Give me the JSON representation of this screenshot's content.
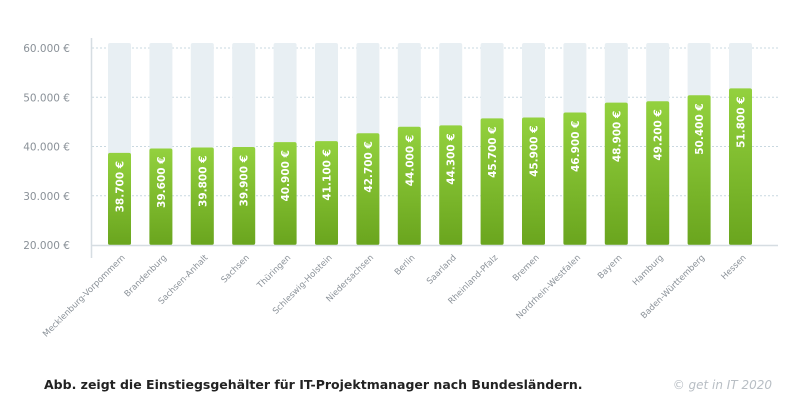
{
  "chart_data": {
    "type": "bar",
    "categories": [
      "Mecklenburg-Vorpommern",
      "Brandenburg",
      "Sachsen-Anhalt",
      "Sachsen",
      "Thüringen",
      "Schleswig-Holstein",
      "Niedersachsen",
      "Berlin",
      "Saarland",
      "Rheinland-Pfalz",
      "Bremen",
      "Nordrhein-Westfalen",
      "Bayern",
      "Hamburg",
      "Baden-Württemberg",
      "Hessen"
    ],
    "values": [
      38700,
      39600,
      39800,
      39900,
      40900,
      41100,
      42700,
      44000,
      44300,
      45700,
      45900,
      46900,
      48900,
      49200,
      50400,
      51800
    ],
    "value_labels": [
      "38.700 €",
      "39.600 €",
      "39.800 €",
      "39.900 €",
      "40.900 €",
      "41.100 €",
      "42.700 €",
      "44.000 €",
      "44.300 €",
      "45.700 €",
      "45.900 €",
      "46.900 €",
      "48.900 €",
      "49.200 €",
      "50.400 €",
      "51.800 €"
    ],
    "ylim": [
      20000,
      60000
    ],
    "yticks": [
      20000,
      30000,
      40000,
      50000,
      60000
    ],
    "ytick_labels": [
      "20.000 €",
      "30.000 €",
      "40.000 €",
      "50.000 €",
      "60.000 €"
    ],
    "grid": true,
    "title": "",
    "xlabel": "",
    "ylabel": "",
    "colors": {
      "bar_top": "#93d13e",
      "bar_bottom": "#6aa51e",
      "track": "#e8eff3",
      "grid": "#c9d8e0",
      "axis": "#d6dde2",
      "tick_text": "#8a9198"
    }
  },
  "caption": "Abb. zeigt die Einstiegsgehälter für IT-Projektmanager nach Bundesländern.",
  "copyright": "© get in IT 2020"
}
